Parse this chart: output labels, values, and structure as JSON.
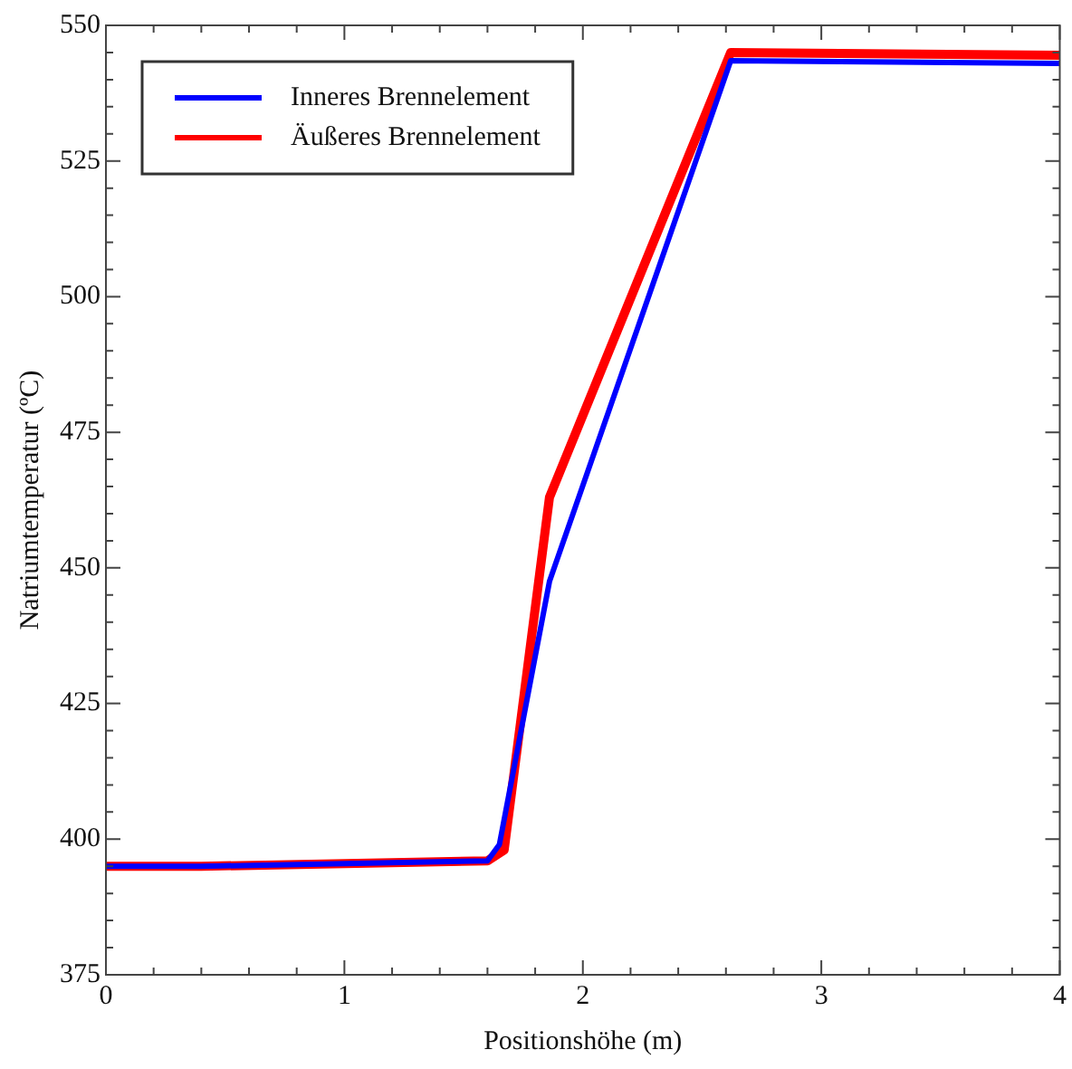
{
  "chart_data": {
    "type": "line",
    "xlabel": "Positionshöhe (m)",
    "ylabel": "Natriumtemperatur (ºC)",
    "xlim": [
      0,
      4
    ],
    "ylim": [
      375,
      550
    ],
    "xticks": [
      0,
      {
        "value": 0.2,
        "label": null
      },
      {
        "value": 0.4,
        "label": null
      },
      {
        "value": 0.6,
        "label": null
      },
      {
        "value": 0.8,
        "label": null
      },
      1,
      {
        "value": 1.2,
        "label": null
      },
      {
        "value": 1.4,
        "label": null
      },
      {
        "value": 1.6,
        "label": null
      },
      {
        "value": 1.8,
        "label": null
      },
      2,
      {
        "value": 2.2,
        "label": null
      },
      {
        "value": 2.4,
        "label": null
      },
      {
        "value": 2.6,
        "label": null
      },
      {
        "value": 2.8,
        "label": null
      },
      3,
      {
        "value": 3.2,
        "label": null
      },
      {
        "value": 3.4,
        "label": null
      },
      {
        "value": 3.6,
        "label": null
      },
      {
        "value": 3.8,
        "label": null
      },
      4
    ],
    "yticks": [
      375,
      {
        "value": 380,
        "label": null
      },
      {
        "value": 385,
        "label": null
      },
      {
        "value": 390,
        "label": null
      },
      {
        "value": 395,
        "label": null
      },
      400,
      {
        "value": 405,
        "label": null
      },
      {
        "value": 410,
        "label": null
      },
      {
        "value": 415,
        "label": null
      },
      {
        "value": 420,
        "label": null
      },
      425,
      {
        "value": 430,
        "label": null
      },
      {
        "value": 435,
        "label": null
      },
      {
        "value": 440,
        "label": null
      },
      {
        "value": 445,
        "label": null
      },
      450,
      {
        "value": 455,
        "label": null
      },
      {
        "value": 460,
        "label": null
      },
      {
        "value": 465,
        "label": null
      },
      {
        "value": 470,
        "label": null
      },
      475,
      {
        "value": 480,
        "label": null
      },
      {
        "value": 485,
        "label": null
      },
      {
        "value": 490,
        "label": null
      },
      {
        "value": 495,
        "label": null
      },
      500,
      {
        "value": 505,
        "label": null
      },
      {
        "value": 510,
        "label": null
      },
      {
        "value": 515,
        "label": null
      },
      {
        "value": 520,
        "label": null
      },
      525,
      {
        "value": 530,
        "label": null
      },
      {
        "value": 535,
        "label": null
      },
      {
        "value": 540,
        "label": null
      },
      {
        "value": 545,
        "label": null
      },
      550
    ],
    "grid": false,
    "legend": "top left",
    "marker": "none",
    "line_style": "solid",
    "series": [
      {
        "name": "Inneres Brennelement",
        "color": "#0000ff",
        "x": [
          0,
          0.4,
          1.6,
          1.65,
          1.86,
          2.62,
          4
        ],
        "values": [
          395,
          395,
          396,
          399,
          447.5,
          543.5,
          543
        ]
      },
      {
        "name": "Äußeres Brennelement",
        "color": "#ff0000",
        "x": [
          0,
          0.4,
          1.6,
          1.67,
          1.86,
          2.62,
          4
        ],
        "values": [
          395,
          395,
          396,
          398,
          463,
          545,
          544.5
        ]
      }
    ]
  }
}
